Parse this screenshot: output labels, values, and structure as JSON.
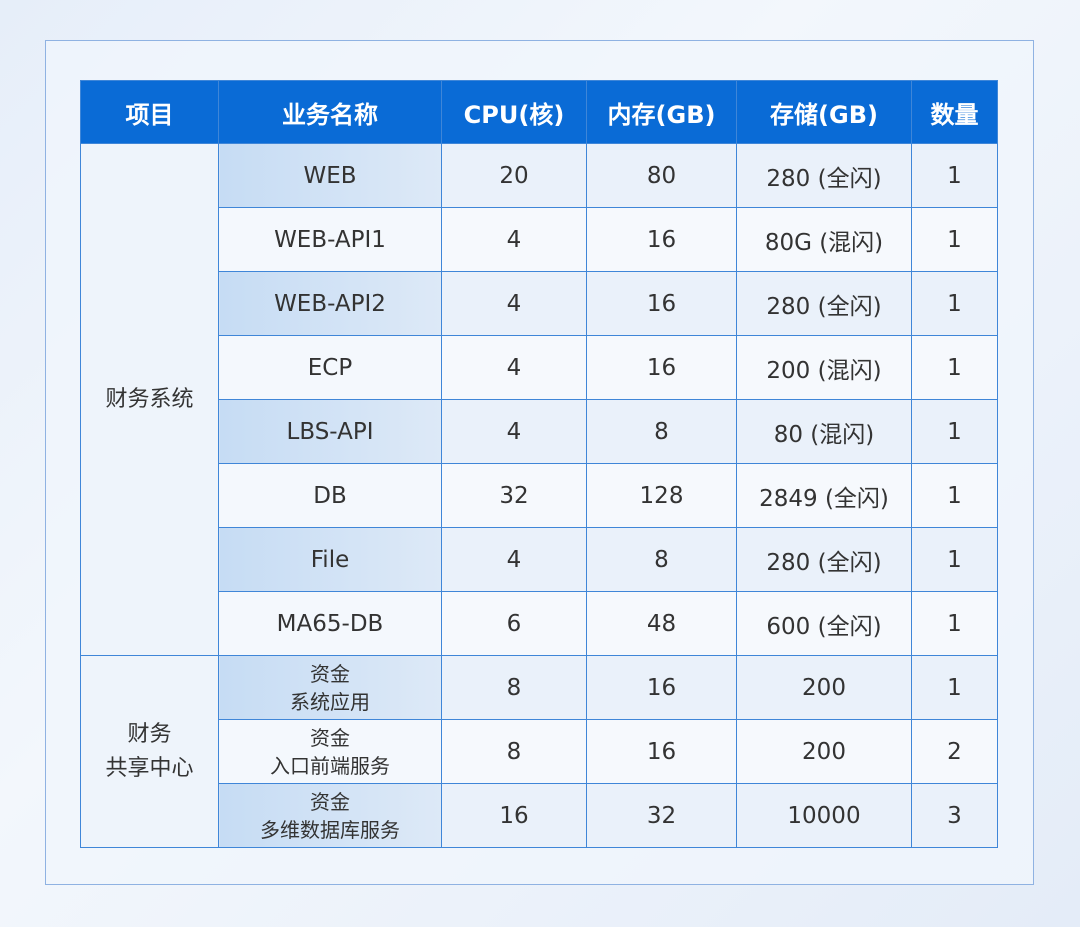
{
  "headers": [
    "项目",
    "业务名称",
    "CPU(核)",
    "内存(GB)",
    "存储(GB)",
    "数量"
  ],
  "groups": [
    {
      "label": "财务系统",
      "rows": [
        {
          "name": "WEB",
          "cpu": "20",
          "mem": "80",
          "storage": "280 (全闪)",
          "qty": "1"
        },
        {
          "name": "WEB-API1",
          "cpu": "4",
          "mem": "16",
          "storage": "80G (混闪)",
          "qty": "1"
        },
        {
          "name": "WEB-API2",
          "cpu": "4",
          "mem": "16",
          "storage": "280 (全闪)",
          "qty": "1"
        },
        {
          "name": "ECP",
          "cpu": "4",
          "mem": "16",
          "storage": "200 (混闪)",
          "qty": "1"
        },
        {
          "name": "LBS-API",
          "cpu": "4",
          "mem": "8",
          "storage": "80 (混闪)",
          "qty": "1"
        },
        {
          "name": "DB",
          "cpu": "32",
          "mem": "128",
          "storage": "2849 (全闪)",
          "qty": "1"
        },
        {
          "name": "File",
          "cpu": "4",
          "mem": "8",
          "storage": "280 (全闪)",
          "qty": "1"
        },
        {
          "name": "MA65-DB",
          "cpu": "6",
          "mem": "48",
          "storage": "600 (全闪)",
          "qty": "1"
        }
      ]
    },
    {
      "label_line1": "财务",
      "label_line2": "共享中心",
      "rows": [
        {
          "name_line1": "资金",
          "name_line2": "系统应用",
          "cpu": "8",
          "mem": "16",
          "storage": "200",
          "qty": "1"
        },
        {
          "name_line1": "资金",
          "name_line2": "入口前端服务",
          "cpu": "8",
          "mem": "16",
          "storage": "200",
          "qty": "2"
        },
        {
          "name_line1": "资金",
          "name_line2": "多维数据库服务",
          "cpu": "16",
          "mem": "32",
          "storage": "10000",
          "qty": "3"
        }
      ]
    }
  ],
  "colors": {
    "header_bg": "#0a6bd6",
    "border": "#3f86d8"
  }
}
